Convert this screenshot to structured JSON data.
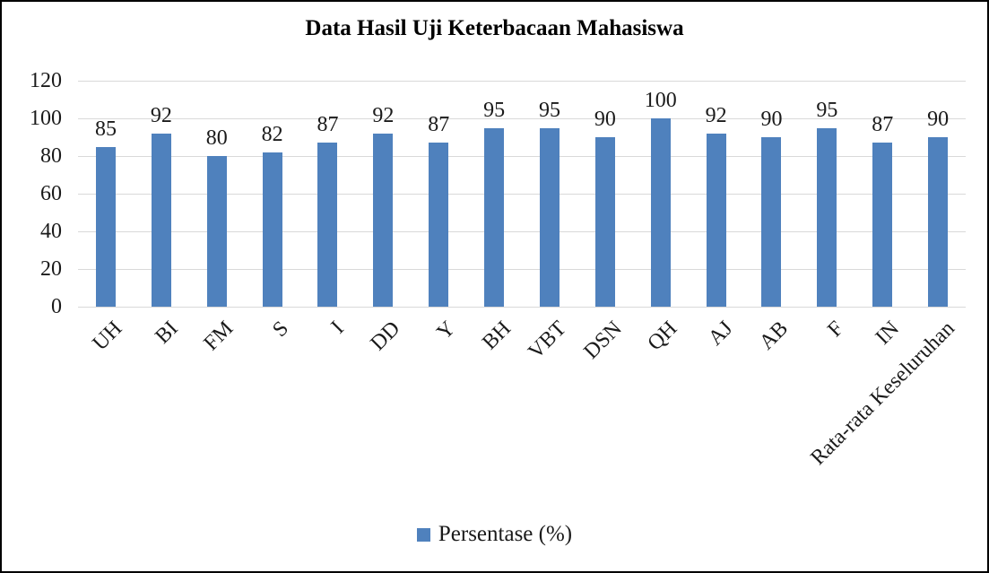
{
  "title": "Data Hasil Uji Keterbacaan Mahasiswa",
  "legend": {
    "label": "Persentase (%)",
    "swatch_color": "#4F81BD"
  },
  "chart_data": {
    "type": "bar",
    "title": "Data Hasil Uji Keterbacaan Mahasiswa",
    "categories": [
      "UH",
      "BI",
      "FM",
      "S",
      "I",
      "DD",
      "Y",
      "BH",
      "VBT",
      "DSN",
      "QH",
      "AJ",
      "AB",
      "F",
      "IN",
      "Rata-rata Keseluruhan"
    ],
    "series": [
      {
        "name": "Persentase (%)",
        "values": [
          85,
          92,
          80,
          82,
          87,
          92,
          87,
          95,
          95,
          90,
          100,
          92,
          90,
          95,
          87,
          90
        ]
      }
    ],
    "xlabel": "",
    "ylabel": "",
    "ylim": [
      0,
      120
    ],
    "yticks": [
      0,
      20,
      40,
      60,
      80,
      100,
      120
    ],
    "grid": true,
    "data_labels": true,
    "legend_position": "bottom",
    "bar_color": "#4F81BD",
    "gridline_color": "#D9D9D9",
    "x_tick_rotation_deg": 45
  }
}
